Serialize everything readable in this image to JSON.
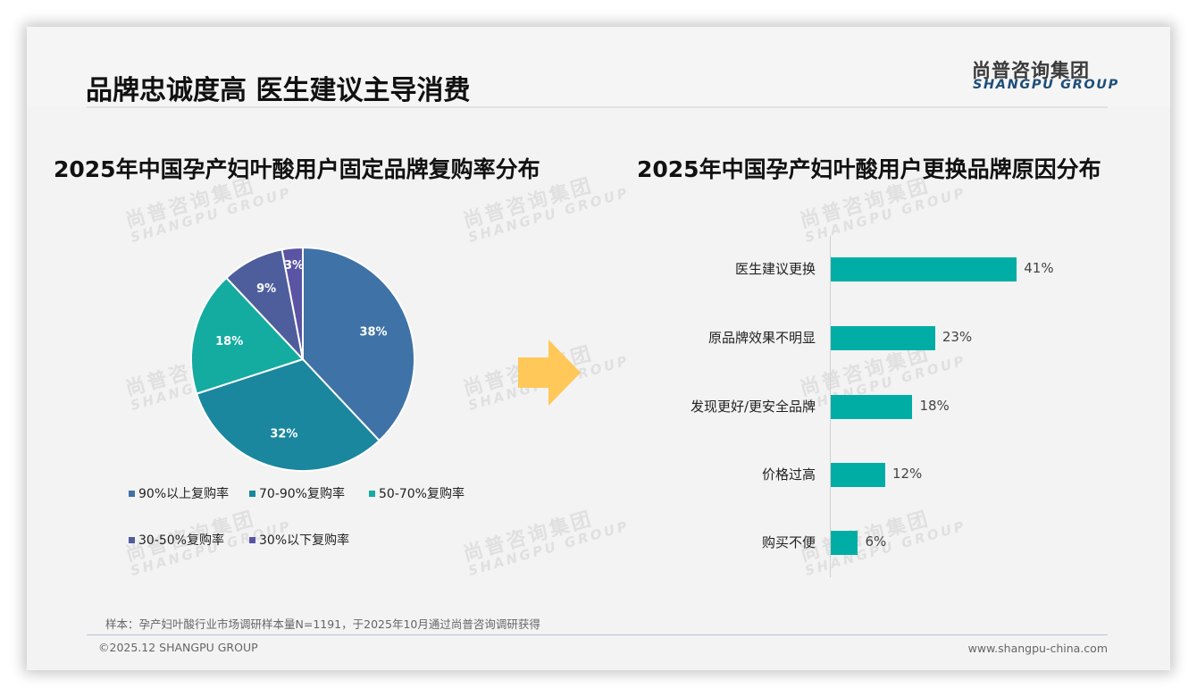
{
  "header": {
    "title": "品牌忠诚度高 医生建议主导消费",
    "logo_cn": "尚普咨询集团",
    "logo_en": "SHANGPU GROUP"
  },
  "watermark": {
    "cn": "尚普咨询集团",
    "en": "SHANGPU GROUP"
  },
  "colors": {
    "slide_bg": "#f3f3f3",
    "logo_blue": "#1f4e79",
    "bar_teal": "#00ada5",
    "arrow_yellow": "#ffc859",
    "pie": [
      "#3f72a6",
      "#1a879f",
      "#14aba1",
      "#4e5d9c",
      "#5b53a3"
    ]
  },
  "chart_data": [
    {
      "type": "pie",
      "title": "2025年中国孕产妇叶酸用户固定品牌复购率分布",
      "categories": [
        "90%以上复购率",
        "70-90%复购率",
        "50-70%复购率",
        "30-50%复购率",
        "30%以下复购率"
      ],
      "values": [
        38,
        32,
        18,
        9,
        3
      ],
      "labels": [
        "38%",
        "32%",
        "18%",
        "9%",
        "3%"
      ],
      "unit": "%",
      "legend_position": "bottom"
    },
    {
      "type": "bar",
      "orientation": "horizontal",
      "title": "2025年中国孕产妇叶酸用户更换品牌原因分布",
      "categories": [
        "医生建议更换",
        "原品牌效果不明显",
        "发现更好/更安全品牌",
        "价格过高",
        "购买不便"
      ],
      "values": [
        41,
        23,
        18,
        12,
        6
      ],
      "labels": [
        "41%",
        "23%",
        "18%",
        "12%",
        "6%"
      ],
      "unit": "%",
      "grid": false,
      "xlim": [
        0,
        45
      ]
    }
  ],
  "pie_legend": [
    {
      "label": "90%以上复购率"
    },
    {
      "label": "70-90%复购率"
    },
    {
      "label": "50-70%复购率"
    },
    {
      "label": "30-50%复购率"
    },
    {
      "label": "30%以下复购率"
    }
  ],
  "footer": {
    "footnote": "样本：孕产妇叶酸行业市场调研样本量N=1191，于2025年10月通过尚普咨询调研获得",
    "copyright": "©2025.12 SHANGPU GROUP",
    "website": "www.shangpu-china.com"
  }
}
